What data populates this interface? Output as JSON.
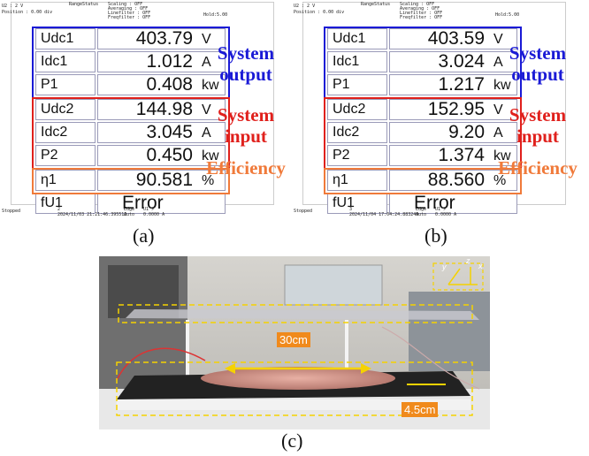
{
  "panels": [
    {
      "label": "(a)",
      "header": {
        "channel": "U2 : 2 V",
        "position": "Position : 0.00 div",
        "status": "RangeStatus",
        "settings": [
          "Scaling : OFF",
          "Averaging : OFF",
          "Linefilter : OFF",
          "Freqfilter : OFF"
        ],
        "hold": "Hold:5.00"
      },
      "rows": [
        {
          "name": "Udc1",
          "value": "403.79",
          "unit": "V"
        },
        {
          "name": "Idc1",
          "value": "1.012",
          "unit": "A"
        },
        {
          "name": "P1",
          "value": "0.408",
          "unit": "kw"
        },
        {
          "name": "Udc2",
          "value": "144.98",
          "unit": "V"
        },
        {
          "name": "Idc2",
          "value": "3.045",
          "unit": "A"
        },
        {
          "name": "P2",
          "value": "0.450",
          "unit": "kw"
        },
        {
          "name": "η1",
          "value": "90.581",
          "unit": "%"
        },
        {
          "name": "fU1",
          "value": "Error",
          "unit": ""
        }
      ],
      "footer": {
        "state": "Stopped",
        "count": "2",
        "timestamp": "2024/11/03 21:21:46.395512",
        "trigger": "Edge",
        "mode": "Auto",
        "source": "U1 ↗",
        "level": "0.0000 A"
      },
      "annotations": [
        {
          "text": "System output",
          "color": "#1a1ad6"
        },
        {
          "text": "System input",
          "color": "#e0201c"
        },
        {
          "text": "Efficiency",
          "color": "#f07a3a"
        }
      ]
    },
    {
      "label": "(b)",
      "header": {
        "channel": "U2 : 2 V",
        "position": "Position : 0.00 div",
        "status": "RangeStatus",
        "settings": [
          "Scaling : OFF",
          "Averaging : OFF",
          "Linefilter : OFF",
          "Freqfilter : OFF"
        ],
        "hold": "Hold:5.00"
      },
      "rows": [
        {
          "name": "Udc1",
          "value": "403.59",
          "unit": "V"
        },
        {
          "name": "Idc1",
          "value": "3.024",
          "unit": "A"
        },
        {
          "name": "P1",
          "value": "1.217",
          "unit": "kw"
        },
        {
          "name": "Udc2",
          "value": "152.95",
          "unit": "V"
        },
        {
          "name": "Idc2",
          "value": "9.20",
          "unit": "A"
        },
        {
          "name": "P2",
          "value": "1.374",
          "unit": "kw"
        },
        {
          "name": "η1",
          "value": "88.560",
          "unit": "%"
        },
        {
          "name": "fU1",
          "value": "Error",
          "unit": ""
        }
      ],
      "footer": {
        "state": "Stopped",
        "count": "3",
        "timestamp": "2024/11/04 17:04:24.883240",
        "trigger": "Edge",
        "mode": "Auto",
        "source": "U1 ↗",
        "level": "0.0000 A"
      },
      "annotations": [
        {
          "text": "System output",
          "color": "#1a1ad6"
        },
        {
          "text": "System input",
          "color": "#e0201c"
        },
        {
          "text": "Efficiency",
          "color": "#f07a3a"
        }
      ]
    }
  ],
  "photo": {
    "label": "(c)",
    "dimensions": [
      "30cm",
      "4.5cm"
    ],
    "axes": [
      "x",
      "y",
      "z"
    ]
  }
}
